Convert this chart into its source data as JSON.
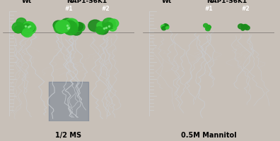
{
  "left_panel": {
    "wt_label": "Wt",
    "nap_label": "NAP1-S6K1",
    "sub1_label": "#1",
    "sub2_label": "#2",
    "bottom_label": "1/2 MS",
    "bg_color": "#4a5a6e",
    "panel_light_area": "#7a8a9a"
  },
  "right_panel": {
    "wt_label": "Wt",
    "nap_label": "NAP1-S6K1",
    "sub1_label": "#1",
    "sub2_label": "#2",
    "bottom_label": "0.5M Mannitol",
    "bg_color": "#5a6a7e",
    "panel_light_area": "#8a9aaa"
  },
  "fig_bg": "#c8c0b8",
  "fig_width": 3.96,
  "fig_height": 2.01,
  "panel_bg": "#4d5f72",
  "root_color": "#c8ccd0",
  "ruler_color": "#cccccc",
  "plant_dark": "#1a8a1a",
  "plant_bright": "#33cc33",
  "plant_mid": "#22aa22"
}
